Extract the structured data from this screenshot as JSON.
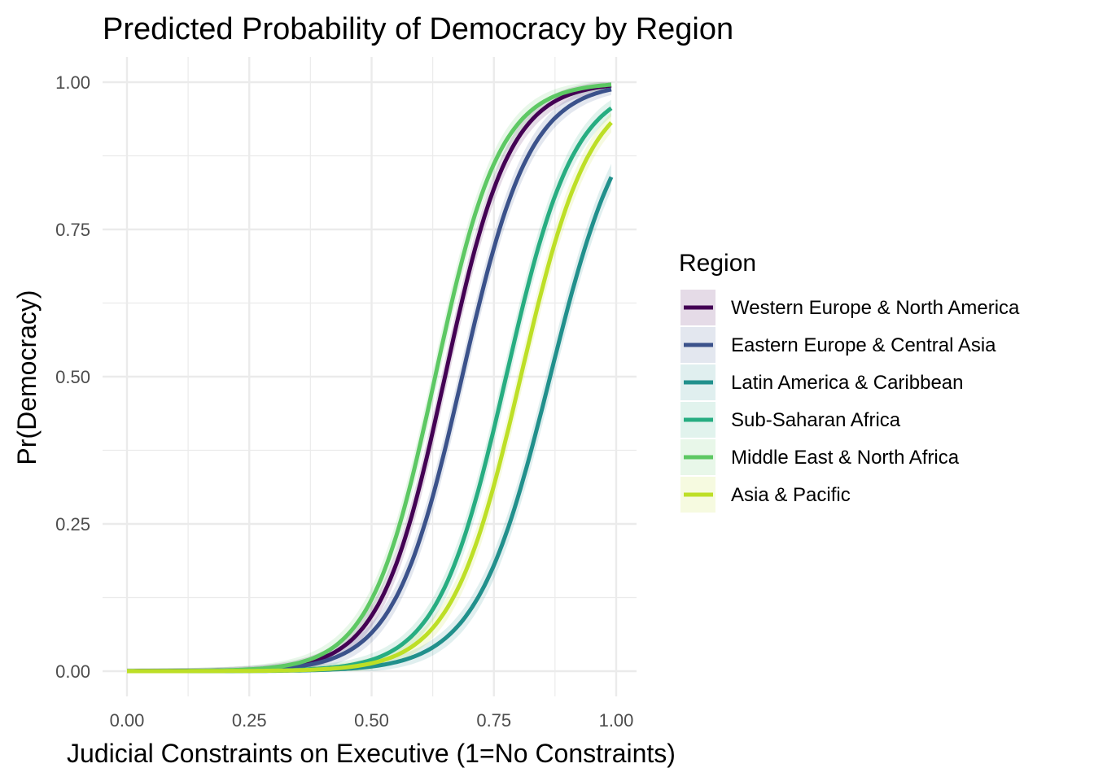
{
  "chart_data": {
    "type": "line",
    "title": "Predicted Probability of Democracy by Region",
    "xlabel": "Judicial Constraints on Executive (1=No Constraints)",
    "ylabel": "Pr(Democracy)",
    "xlim": [
      0,
      1
    ],
    "ylim": [
      0,
      1
    ],
    "x_ticks": [
      "0.00",
      "0.25",
      "0.50",
      "0.75",
      "1.00"
    ],
    "y_ticks": [
      "0.00",
      "0.25",
      "0.50",
      "0.75",
      "1.00"
    ],
    "grid": true,
    "legend": {
      "title": "Region",
      "position": "right"
    },
    "ribbons": true,
    "series": [
      {
        "name": "Western Europe & North America",
        "color": "#440154",
        "midpoint": 0.65,
        "slope": 15.1,
        "x_end": 0.99,
        "points": [
          [
            0.0,
            0.0
          ],
          [
            0.25,
            0.002
          ],
          [
            0.4,
            0.023
          ],
          [
            0.5,
            0.09
          ],
          [
            0.6,
            0.32
          ],
          [
            0.65,
            0.5
          ],
          [
            0.7,
            0.68
          ],
          [
            0.8,
            0.91
          ],
          [
            0.9,
            0.975
          ],
          [
            0.99,
            0.983
          ]
        ]
      },
      {
        "name": "Eastern Europe & Central Asia",
        "color": "#3b528b",
        "midpoint": 0.685,
        "slope": 14.4,
        "x_end": 0.99,
        "points": [
          [
            0.0,
            0.0
          ],
          [
            0.25,
            0.002
          ],
          [
            0.4,
            0.016
          ],
          [
            0.5,
            0.065
          ],
          [
            0.6,
            0.23
          ],
          [
            0.685,
            0.5
          ],
          [
            0.75,
            0.72
          ],
          [
            0.85,
            0.91
          ],
          [
            0.99,
            0.972
          ]
        ]
      },
      {
        "name": "Latin America & Caribbean",
        "color": "#21908c",
        "midpoint": 0.865,
        "slope": 13.2,
        "x_end": 0.99,
        "points": [
          [
            0.0,
            0.0
          ],
          [
            0.25,
            0.0
          ],
          [
            0.5,
            0.008
          ],
          [
            0.6,
            0.03
          ],
          [
            0.7,
            0.1
          ],
          [
            0.8,
            0.3
          ],
          [
            0.865,
            0.5
          ],
          [
            0.9,
            0.61
          ],
          [
            0.99,
            0.84
          ]
        ]
      },
      {
        "name": "Sub-Saharan Africa",
        "color": "#27ad81",
        "midpoint": 0.775,
        "slope": 14.3,
        "x_end": 0.99,
        "points": [
          [
            0.0,
            0.0
          ],
          [
            0.25,
            0.001
          ],
          [
            0.5,
            0.02
          ],
          [
            0.6,
            0.075
          ],
          [
            0.7,
            0.26
          ],
          [
            0.775,
            0.5
          ],
          [
            0.85,
            0.74
          ],
          [
            0.99,
            0.92
          ]
        ]
      },
      {
        "name": "Middle East & North Africa",
        "color": "#5dc863",
        "midpoint": 0.63,
        "slope": 15.2,
        "x_end": 0.99,
        "points": [
          [
            0.0,
            0.0
          ],
          [
            0.25,
            0.003
          ],
          [
            0.4,
            0.03
          ],
          [
            0.5,
            0.12
          ],
          [
            0.6,
            0.39
          ],
          [
            0.63,
            0.5
          ],
          [
            0.7,
            0.73
          ],
          [
            0.8,
            0.93
          ],
          [
            0.99,
            0.986
          ]
        ]
      },
      {
        "name": "Asia & Pacific",
        "color": "#bddf26",
        "midpoint": 0.805,
        "slope": 14.1,
        "x_end": 0.99,
        "points": [
          [
            0.0,
            0.0
          ],
          [
            0.25,
            0.0
          ],
          [
            0.5,
            0.014
          ],
          [
            0.6,
            0.055
          ],
          [
            0.7,
            0.19
          ],
          [
            0.805,
            0.5
          ],
          [
            0.9,
            0.79
          ],
          [
            0.99,
            0.9
          ]
        ]
      }
    ]
  }
}
